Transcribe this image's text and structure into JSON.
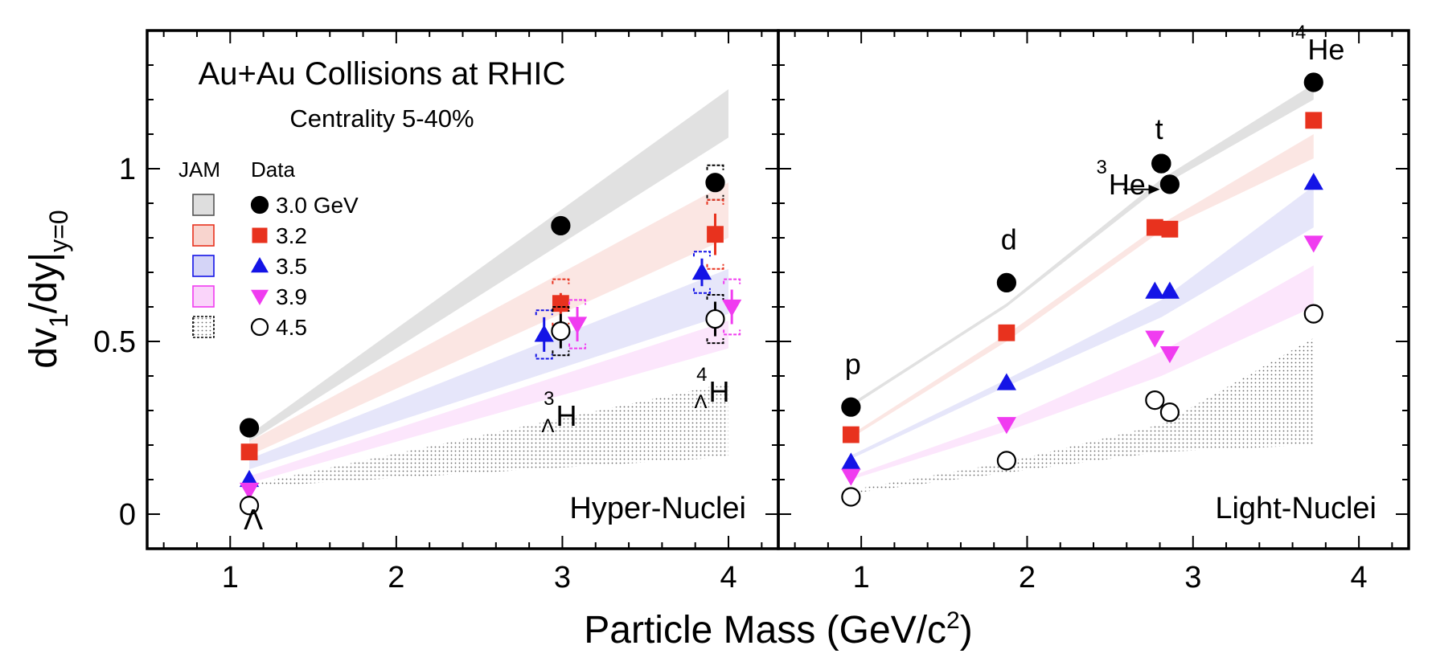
{
  "chart_data": [
    {
      "type": "scatter",
      "panel": "Hyper-Nuclei",
      "title": "Au+Au Collisions at RHIC",
      "subtitle": "Centrality 5-40%",
      "panel_label": "Hyper-Nuclei",
      "xlim": [
        0.5,
        4.3
      ],
      "ylim": [
        -0.1,
        1.4
      ],
      "x_ticks": [
        1,
        2,
        3,
        4
      ],
      "y_ticks": [
        0,
        0.5,
        1
      ],
      "y_tick_labels": [
        "0",
        "0.5",
        "1"
      ],
      "particles": [
        {
          "pre": "",
          "sup": "",
          "sub": "",
          "main": "Λ",
          "x": 1.12,
          "y": -0.03
        },
        {
          "pre": "",
          "sup": "3",
          "sub": "Λ",
          "main": "H",
          "x": 3.0,
          "y": 0.27
        },
        {
          "pre": "",
          "sup": "4",
          "sub": "Λ",
          "main": "H",
          "x": 3.92,
          "y": 0.34
        }
      ],
      "series": [
        {
          "name": "3.0 GeV",
          "points": [
            {
              "x": 1.115,
              "y": 0.25,
              "stat": 0
            },
            {
              "x": 2.99,
              "y": 0.835,
              "stat": 0
            },
            {
              "x": 3.92,
              "y": 0.96,
              "stat": 0,
              "sys": 0.05
            }
          ]
        },
        {
          "name": "3.2",
          "points": [
            {
              "x": 1.115,
              "y": 0.18,
              "stat": 0
            },
            {
              "x": 2.99,
              "y": 0.61,
              "stat": 0.03,
              "sys": 0.07
            },
            {
              "x": 3.92,
              "y": 0.81,
              "stat": 0.06,
              "sys": 0.1
            }
          ]
        },
        {
          "name": "3.5",
          "points": [
            {
              "x": 1.115,
              "y": 0.1,
              "stat": 0
            },
            {
              "x": 2.89,
              "y": 0.52,
              "stat": 0.05,
              "sys": 0.07
            },
            {
              "x": 3.84,
              "y": 0.7,
              "stat": 0.04,
              "sys": 0.06
            }
          ]
        },
        {
          "name": "3.9",
          "points": [
            {
              "x": 1.115,
              "y": 0.07,
              "stat": 0
            },
            {
              "x": 3.09,
              "y": 0.55,
              "stat": 0.05,
              "sys": 0.07
            },
            {
              "x": 4.02,
              "y": 0.6,
              "stat": 0.05,
              "sys": 0.08
            }
          ]
        },
        {
          "name": "4.5",
          "points": [
            {
              "x": 1.115,
              "y": 0.025,
              "stat": 0
            },
            {
              "x": 2.99,
              "y": 0.53,
              "stat": 0.05,
              "sys": 0.07
            },
            {
              "x": 3.92,
              "y": 0.565,
              "stat": 0.05,
              "sys": 0.07
            }
          ]
        }
      ],
      "jam_bands": [
        {
          "name": "3.0 GeV",
          "x": [
            1.115,
            4.0
          ],
          "low": [
            0.21,
            1.09
          ],
          "high": [
            0.23,
            1.23
          ]
        },
        {
          "name": "3.2",
          "x": [
            1.115,
            4.0
          ],
          "low": [
            0.17,
            0.8
          ],
          "high": [
            0.21,
            0.96
          ]
        },
        {
          "name": "3.5",
          "x": [
            1.115,
            4.0
          ],
          "low": [
            0.13,
            0.58
          ],
          "high": [
            0.16,
            0.71
          ]
        },
        {
          "name": "3.9",
          "x": [
            1.115,
            4.0
          ],
          "low": [
            0.09,
            0.48
          ],
          "high": [
            0.11,
            0.56
          ]
        },
        {
          "name": "4.5",
          "x": [
            1.115,
            4.0
          ],
          "low": [
            0.078,
            0.165
          ],
          "high": [
            0.085,
            0.38
          ]
        }
      ]
    },
    {
      "type": "scatter",
      "panel": "Light-Nuclei",
      "panel_label": "Light-Nuclei",
      "xlim": [
        0.5,
        4.3
      ],
      "ylim": [
        -0.1,
        1.4
      ],
      "x_ticks": [
        1,
        2,
        3,
        4
      ],
      "particles": [
        {
          "pre": "",
          "sup": "",
          "sub": "",
          "main": "p",
          "x": 0.94,
          "y": 0.42
        },
        {
          "pre": "",
          "sup": "",
          "sub": "",
          "main": "d",
          "x": 1.88,
          "y": 0.78
        },
        {
          "pre": "",
          "sup": "",
          "sub": "",
          "main": "t",
          "x": 2.81,
          "y": 1.1
        },
        {
          "pre": "",
          "sup": "3",
          "sub": "",
          "main": "He",
          "x": 2.53,
          "y": 0.94
        },
        {
          "pre": "",
          "sup": "4",
          "sub": "",
          "main": "He",
          "x": 3.73,
          "y": 1.33
        }
      ],
      "series": [
        {
          "name": "3.0 GeV",
          "points": [
            {
              "x": 0.938,
              "y": 0.31
            },
            {
              "x": 1.876,
              "y": 0.67
            },
            {
              "x": 2.809,
              "y": 1.015
            },
            {
              "x": 2.809,
              "y": 1.015
            },
            {
              "x": 2.808,
              "y": 1.015
            },
            {
              "x": 2.86,
              "y": 0.955
            },
            {
              "x": 3.727,
              "y": 1.25
            }
          ]
        },
        {
          "name": "3.2",
          "points": [
            {
              "x": 0.938,
              "y": 0.23
            },
            {
              "x": 1.876,
              "y": 0.525
            },
            {
              "x": 2.77,
              "y": 0.83
            },
            {
              "x": 2.86,
              "y": 0.825
            },
            {
              "x": 3.727,
              "y": 1.14
            }
          ]
        },
        {
          "name": "3.5",
          "points": [
            {
              "x": 0.938,
              "y": 0.15
            },
            {
              "x": 1.876,
              "y": 0.38
            },
            {
              "x": 2.77,
              "y": 0.645
            },
            {
              "x": 2.86,
              "y": 0.645
            },
            {
              "x": 3.727,
              "y": 0.96
            }
          ]
        },
        {
          "name": "3.9",
          "points": [
            {
              "x": 0.938,
              "y": 0.11
            },
            {
              "x": 1.876,
              "y": 0.26
            },
            {
              "x": 2.77,
              "y": 0.51
            },
            {
              "x": 2.86,
              "y": 0.465
            },
            {
              "x": 3.727,
              "y": 0.785
            }
          ]
        },
        {
          "name": "4.5",
          "points": [
            {
              "x": 0.938,
              "y": 0.05
            },
            {
              "x": 1.876,
              "y": 0.155
            },
            {
              "x": 2.77,
              "y": 0.33
            },
            {
              "x": 2.86,
              "y": 0.295
            },
            {
              "x": 3.727,
              "y": 0.58
            }
          ]
        }
      ],
      "jam_bands": [
        {
          "name": "3.0 GeV",
          "x": [
            0.938,
            1.876,
            2.809,
            3.727
          ],
          "low": [
            0.31,
            0.6,
            0.95,
            1.2
          ],
          "high": [
            0.32,
            0.61,
            0.97,
            1.245
          ]
        },
        {
          "name": "3.2",
          "x": [
            0.938,
            1.876,
            2.809,
            3.727
          ],
          "low": [
            0.22,
            0.5,
            0.82,
            1.03
          ],
          "high": [
            0.23,
            0.52,
            0.84,
            1.1
          ]
        },
        {
          "name": "3.5",
          "x": [
            0.938,
            1.876,
            2.809,
            3.727
          ],
          "low": [
            0.16,
            0.37,
            0.57,
            0.83
          ],
          "high": [
            0.17,
            0.39,
            0.62,
            0.95
          ]
        },
        {
          "name": "3.9",
          "x": [
            0.938,
            1.876,
            2.809,
            3.727
          ],
          "low": [
            0.1,
            0.24,
            0.4,
            0.6
          ],
          "high": [
            0.11,
            0.27,
            0.47,
            0.72
          ]
        },
        {
          "name": "4.5",
          "x": [
            0.938,
            1.876,
            2.809,
            3.727
          ],
          "low": [
            0.06,
            0.12,
            0.18,
            0.2
          ],
          "high": [
            0.07,
            0.15,
            0.26,
            0.51
          ]
        }
      ]
    }
  ],
  "figure": {
    "ylabel": "dv₁/dy|y=0",
    "ylabel_main": "dv",
    "ylabel_sub1": "1",
    "ylabel_mid": "/dy|",
    "ylabel_sub2": "y=0",
    "xlabel": "Particle Mass (GeV/c²)",
    "xlabel_main": "Particle Mass (GeV/c",
    "xlabel_sup": "2",
    "xlabel_end": ")",
    "legend": {
      "header_jam": "JAM",
      "header_data": "Data",
      "entries": [
        "3.0 GeV",
        "3.2",
        "3.5",
        "3.9",
        "4.5"
      ]
    },
    "series_styles": [
      {
        "marker": "circle",
        "fill": "#000000",
        "stroke": "#000000",
        "band": "#c8c8c8",
        "band_opacity": 0.55
      },
      {
        "marker": "square",
        "fill": "#e8321e",
        "stroke": "#e8321e",
        "band": "#f4b8ae",
        "band_opacity": 0.35
      },
      {
        "marker": "triangle-up",
        "fill": "#1414e6",
        "stroke": "#1414e6",
        "band": "#b8b8f2",
        "band_opacity": 0.35
      },
      {
        "marker": "triangle-down",
        "fill": "#f03cf0",
        "stroke": "#f03cf0",
        "band": "#f6b8f6",
        "band_opacity": 0.35
      },
      {
        "marker": "circle-open",
        "fill": "#ffffff",
        "stroke": "#000000",
        "band": "#9a9a9a",
        "band_opacity": 0.55
      }
    ]
  }
}
